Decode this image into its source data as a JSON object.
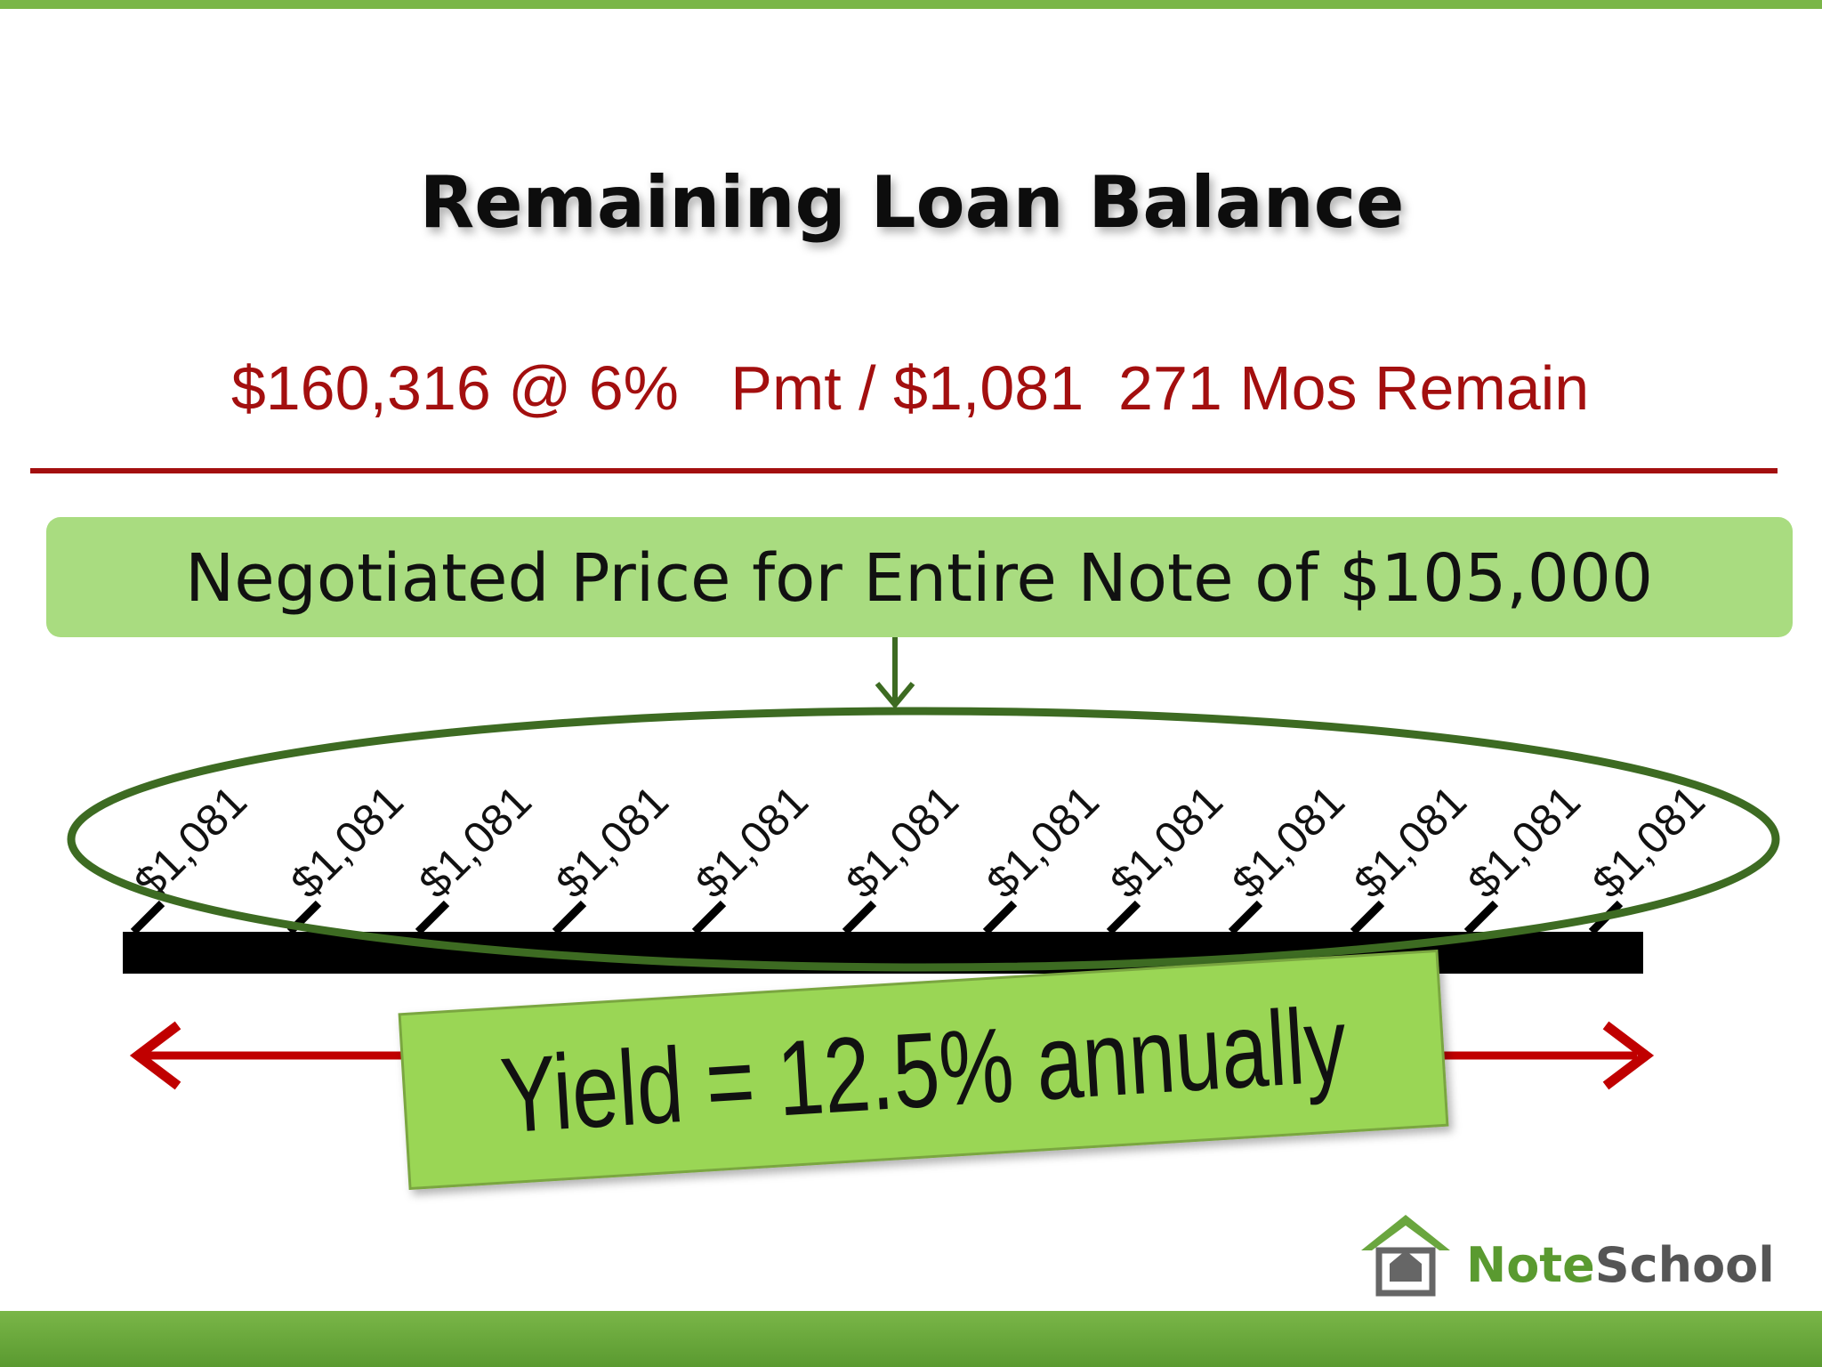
{
  "title": "Remaining Loan Balance",
  "loan_terms": "$160,316 @ 6%   Pmt / $1,081  271 Mos Remain",
  "price_box": "Negotiated Price for Entire Note of $105,000",
  "payments": [
    "$1,081",
    "$1,081",
    "$1,081",
    "$1,081",
    "$1,081",
    "$1,081",
    "$1,081",
    "$1,081",
    "$1,081",
    "$1,081",
    "$1,081",
    "$1,081"
  ],
  "yield_box": "Yield = 12.5% annually",
  "logo": {
    "part1": "Note",
    "part2": "School"
  }
}
